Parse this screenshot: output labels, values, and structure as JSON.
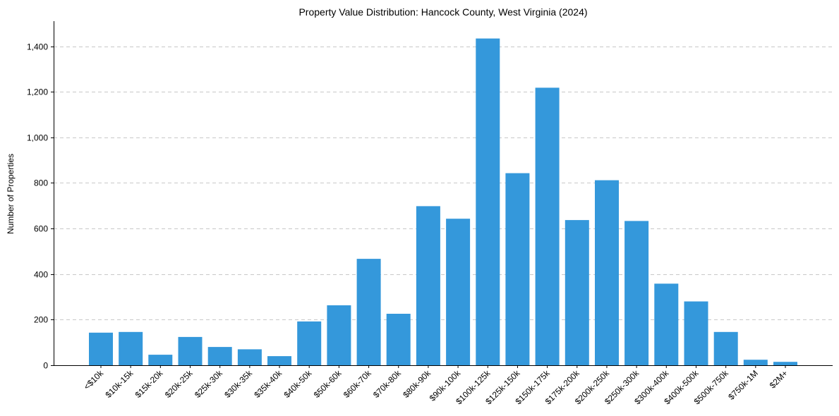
{
  "chart_data": {
    "type": "bar",
    "title": "Property Value Distribution: Hancock County, West Virginia (2024)",
    "xlabel": "",
    "ylabel": "Number of Properties",
    "ylim": [
      0,
      1510
    ],
    "yticks": [
      0,
      200,
      400,
      600,
      800,
      1000,
      1200,
      1400
    ],
    "ytick_labels": [
      "0",
      "200",
      "400",
      "600",
      "800",
      "1,000",
      "1,200",
      "1,400"
    ],
    "grid": "y-dashed",
    "bar_color": "#3498db",
    "categories": [
      "<$10k",
      "$10k-15k",
      "$15k-20k",
      "$20k-25k",
      "$25k-30k",
      "$30k-35k",
      "$35k-40k",
      "$40k-50k",
      "$50k-60k",
      "$60k-70k",
      "$70k-80k",
      "$80k-90k",
      "$90k-100k",
      "$100k-125k",
      "$125k-150k",
      "$150k-175k",
      "$175k-200k",
      "$200k-250k",
      "$250k-300k",
      "$300k-400k",
      "$400k-500k",
      "$500k-750k",
      "$750k-1M",
      "$2M+"
    ],
    "values": [
      143,
      146,
      46,
      124,
      80,
      70,
      40,
      192,
      263,
      467,
      226,
      698,
      643,
      1434,
      843,
      1218,
      637,
      812,
      633,
      358,
      280,
      146,
      24,
      15
    ]
  }
}
